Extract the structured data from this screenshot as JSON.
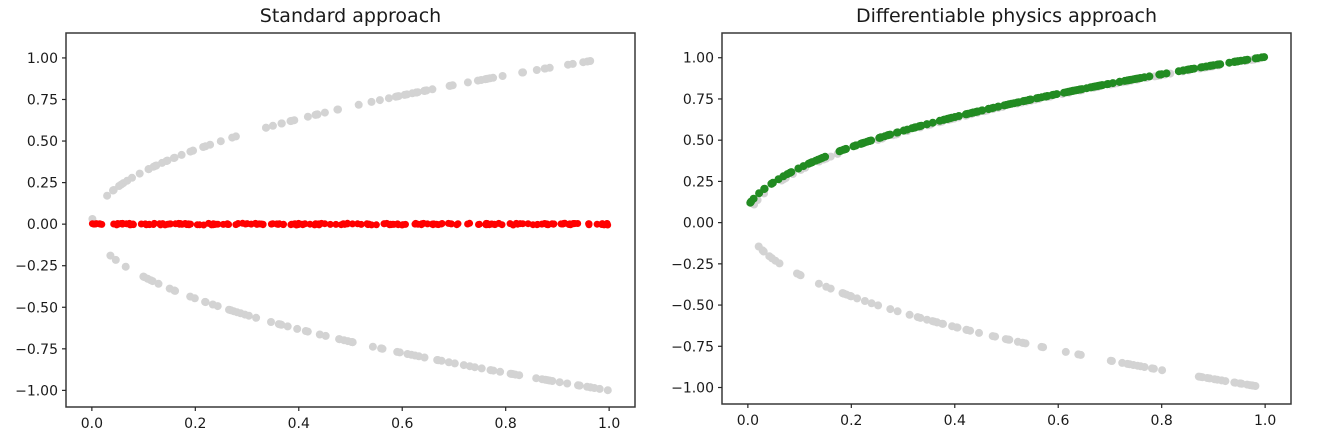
{
  "figure": {
    "background": "#ffffff",
    "spine_color": "#383838",
    "tick_color": "#262626",
    "text_color": "#1a1a1a"
  },
  "chart_data": [
    {
      "type": "scatter",
      "title": "Standard approach",
      "xlabel": "",
      "ylabel": "",
      "xlim": [
        -0.05,
        1.05
      ],
      "ylim": [
        -1.1,
        1.15
      ],
      "grid": false,
      "legend": null,
      "x_ticks": [
        0.0,
        0.2,
        0.4,
        0.6,
        0.8,
        1.0
      ],
      "x_tick_labels": [
        "0.0",
        "0.2",
        "0.4",
        "0.6",
        "0.8",
        "1.0"
      ],
      "y_ticks": [
        1.0,
        0.75,
        0.5,
        0.25,
        0.0,
        -0.25,
        -0.5,
        -0.75,
        -1.0
      ],
      "y_tick_labels": [
        "1.00",
        "0.75",
        "0.50",
        "0.25",
        "0.00",
        "−0.25",
        "−0.50",
        "−0.75",
        "−1.00"
      ],
      "description": "Random samples of the two-valued solution y^2 = x shown in light gray (y = +sqrt(x) and y = -sqrt(x), x in [0,1]); the standard supervised network prediction collapses to the mean y = 0, shown as the red dot row.",
      "series": [
        {
          "name": "solution-samples-upper-branch",
          "color": "#d3d3d3",
          "marker_diameter_px": 8,
          "generator": {
            "kind": "sqrt",
            "sign": 1,
            "x_shift": 0.0,
            "n": 90,
            "x_min": 0.0,
            "x_max": 1.0,
            "seed": 101
          }
        },
        {
          "name": "solution-samples-lower-branch",
          "color": "#d3d3d3",
          "marker_diameter_px": 8,
          "generator": {
            "kind": "sqrt",
            "sign": -1,
            "x_shift": 0.0,
            "n": 90,
            "x_min": 0.0,
            "x_max": 1.0,
            "seed": 202
          }
        },
        {
          "name": "nn-prediction-mean-collapse",
          "color": "#ff0000",
          "marker_diameter_px": 7,
          "generator": {
            "kind": "const",
            "y": 0.0,
            "jitter": 0.005,
            "n": 210,
            "x_min": 0.0,
            "x_max": 1.0,
            "seed": 303
          }
        }
      ]
    },
    {
      "type": "scatter",
      "title": "Differentiable physics approach",
      "xlabel": "",
      "ylabel": "",
      "xlim": [
        -0.05,
        1.05
      ],
      "ylim": [
        -1.1,
        1.15
      ],
      "grid": false,
      "legend": null,
      "x_ticks": [
        0.0,
        0.2,
        0.4,
        0.6,
        0.8,
        1.0
      ],
      "x_tick_labels": [
        "0.0",
        "0.2",
        "0.4",
        "0.6",
        "0.8",
        "1.0"
      ],
      "y_ticks": [
        1.0,
        0.75,
        0.5,
        0.25,
        0.0,
        -0.25,
        -0.5,
        -0.75,
        -1.0
      ],
      "y_tick_labels": [
        "1.00",
        "0.75",
        "0.50",
        "0.25",
        "0.00",
        "−0.25",
        "−0.50",
        "−0.75",
        "−1.00"
      ],
      "description": "Same gray samples of y^2 = x; the differentiable-physics trained network recovers the positive branch y = sqrt(x) (green curve, approximately sqrt(x + 0.01), starting near 0.1 at x = 0).",
      "series": [
        {
          "name": "solution-samples-upper-branch",
          "color": "#d3d3d3",
          "marker_diameter_px": 8,
          "generator": {
            "kind": "sqrt",
            "sign": 1,
            "x_shift": 0.0,
            "n": 90,
            "x_min": 0.0,
            "x_max": 1.0,
            "seed": 404
          }
        },
        {
          "name": "solution-samples-lower-branch",
          "color": "#d3d3d3",
          "marker_diameter_px": 8,
          "generator": {
            "kind": "sqrt",
            "sign": -1,
            "x_shift": 0.0,
            "n": 90,
            "x_min": 0.0,
            "x_max": 1.0,
            "seed": 505
          }
        },
        {
          "name": "dp-prediction-positive-branch",
          "color": "#228B22",
          "marker_diameter_px": 8,
          "generator": {
            "kind": "sqrt",
            "sign": 1,
            "x_shift": 0.01,
            "n": 200,
            "x_min": 0.0,
            "x_max": 1.0,
            "seed": 606
          }
        }
      ]
    }
  ]
}
